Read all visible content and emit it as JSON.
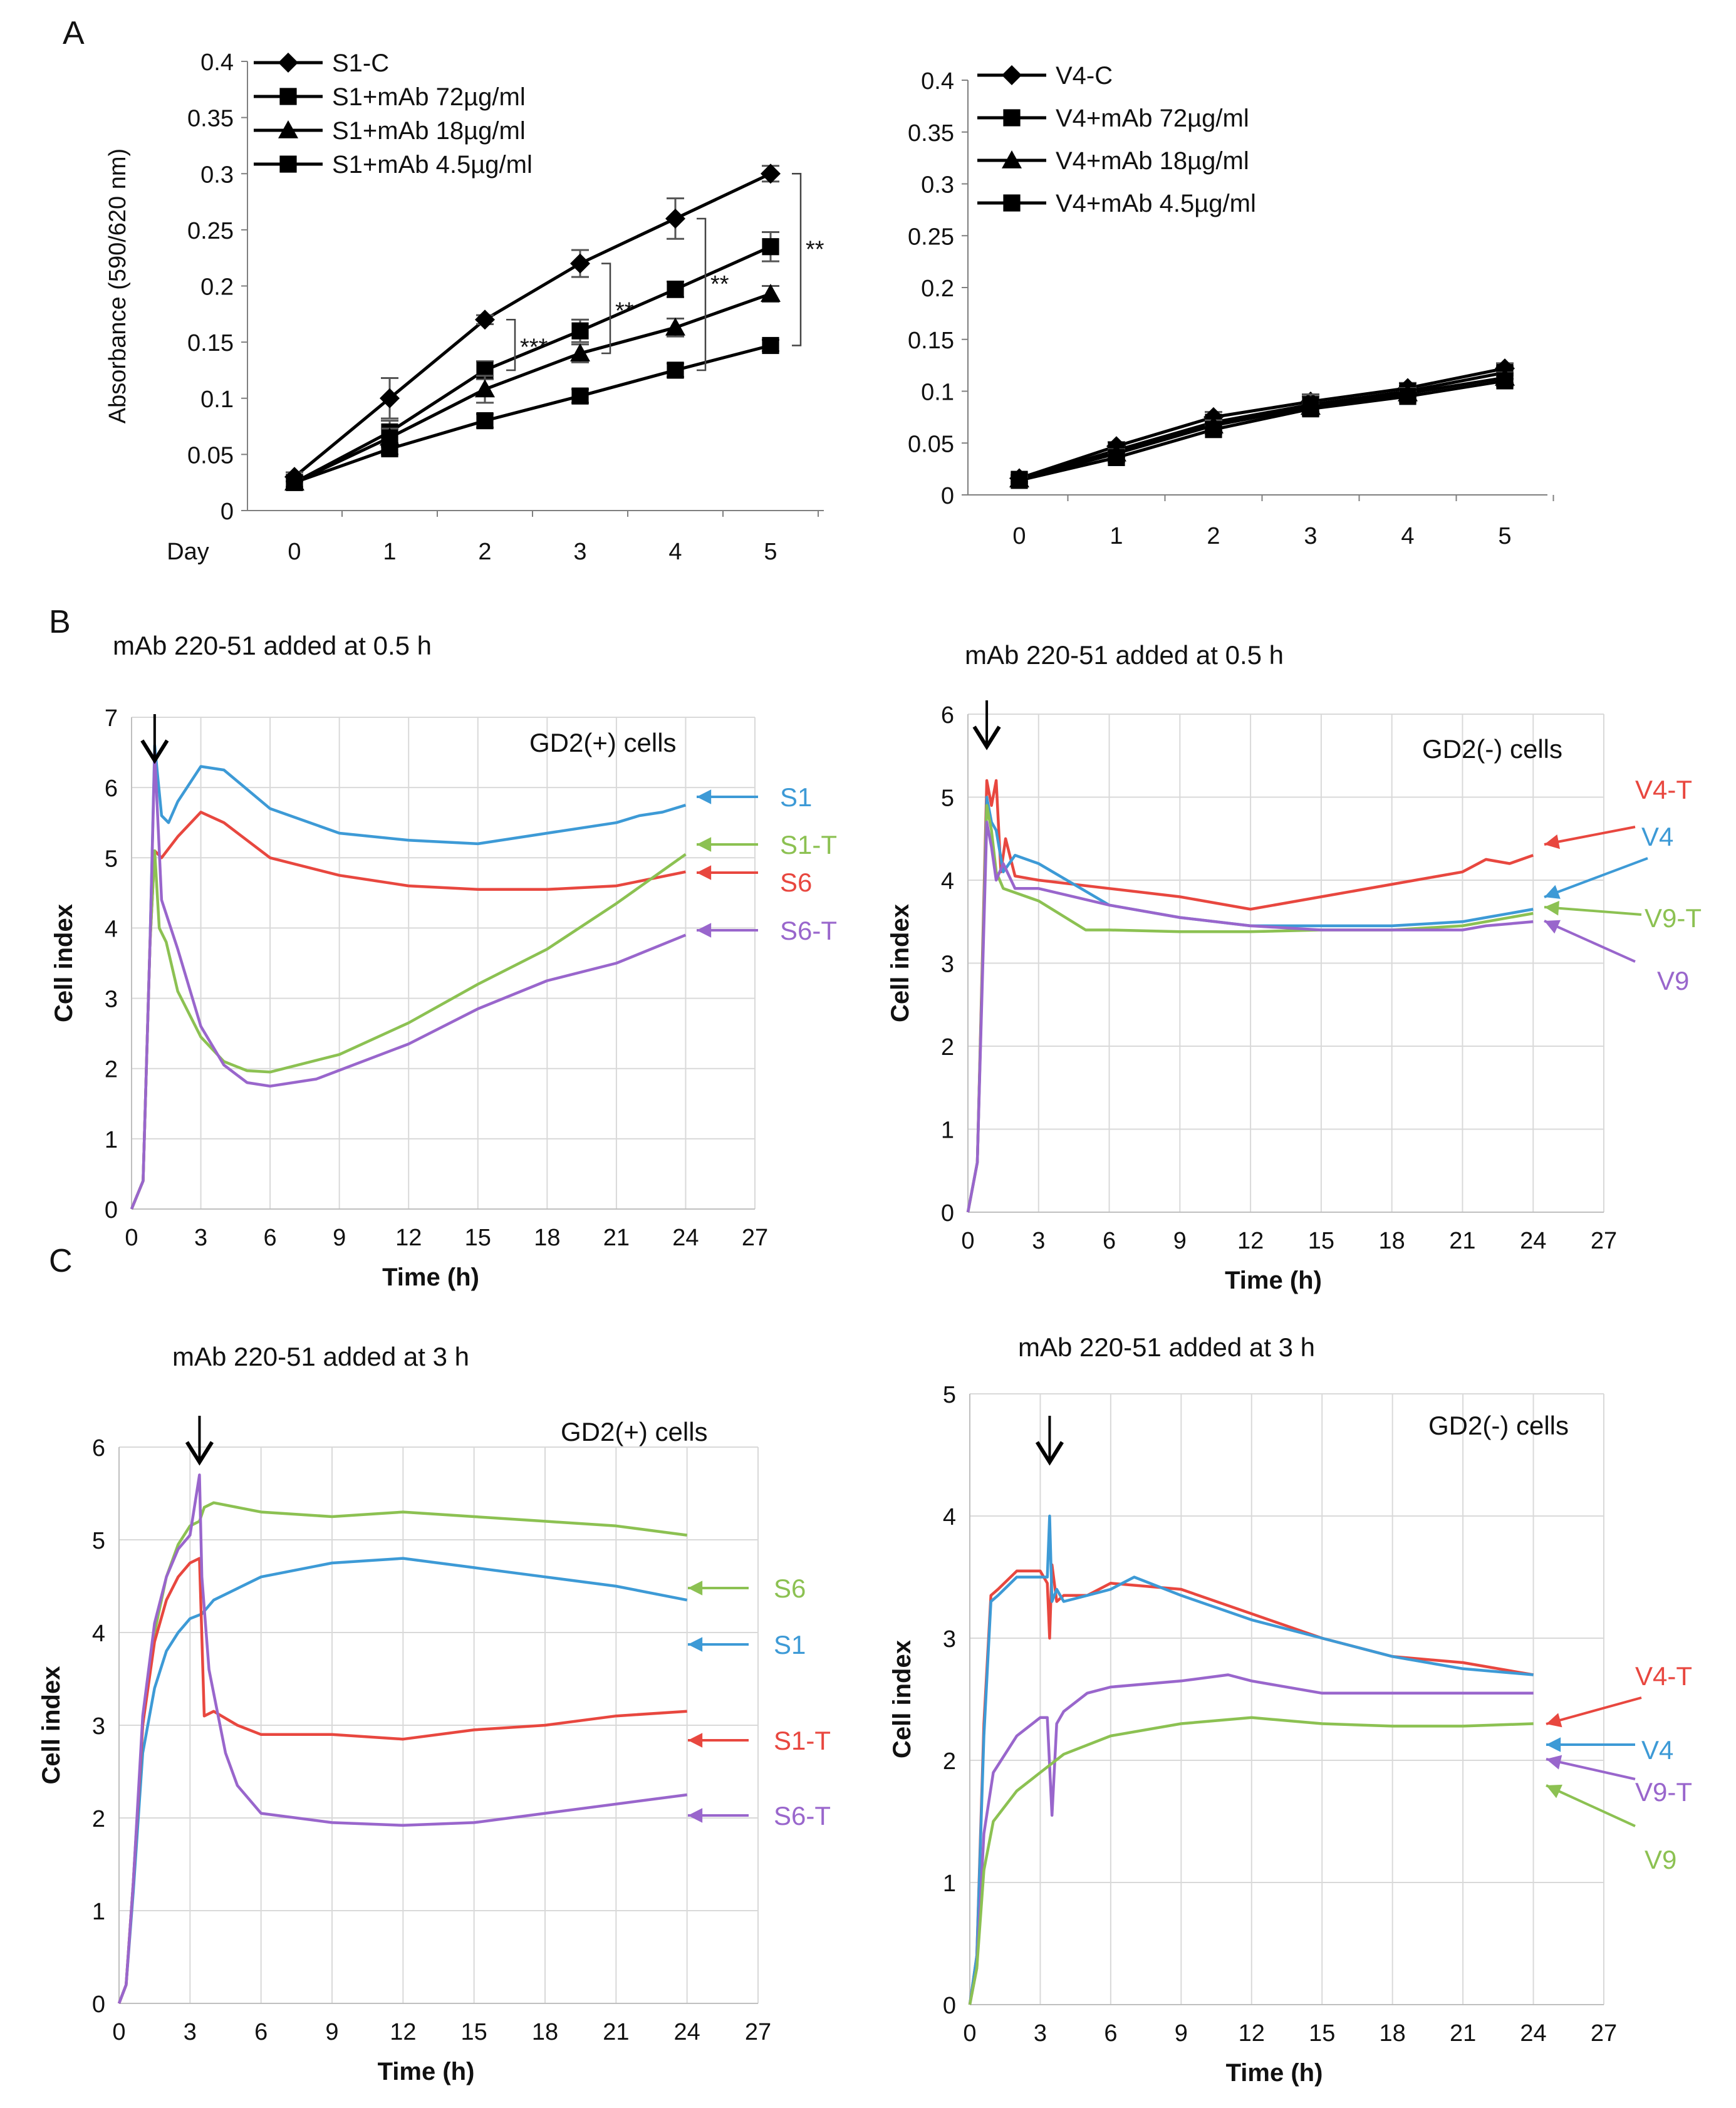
{
  "panel_labels": [
    "A",
    "B",
    "C"
  ],
  "colors": {
    "blue": "#3d9ad6",
    "red": "#e8473f",
    "green": "#8cc152",
    "purple": "#9966cc",
    "black": "#000000",
    "grid": "#d9d9d9"
  },
  "chart_data": [
    {
      "id": "A-left",
      "type": "line",
      "title": "",
      "xlabel": "Day",
      "ylabel": "Absorbance (590/620 nm)",
      "categories": [
        0,
        1,
        2,
        3,
        4,
        5
      ],
      "xticks": [
        "0",
        "1",
        "2",
        "3",
        "4",
        "5"
      ],
      "ylim": [
        0,
        0.4
      ],
      "yticks": [
        "0",
        "0.05",
        "0.1",
        "0.15",
        "0.2",
        "0.25",
        "0.3",
        "0.35",
        "0.4"
      ],
      "grid": false,
      "legend_position": "top-left",
      "series": [
        {
          "name": "S1-C",
          "marker": "diamond",
          "values": [
            0.03,
            0.1,
            0.17,
            0.22,
            0.26,
            0.3
          ],
          "errors": [
            0.004,
            0.018,
            0.004,
            0.012,
            0.018,
            0.007
          ]
        },
        {
          "name": "S1+mAb 72µg/ml",
          "marker": "square",
          "values": [
            0.025,
            0.07,
            0.125,
            0.16,
            0.197,
            0.235
          ],
          "errors": [
            0.004,
            0.01,
            0.008,
            0.01,
            0.007,
            0.013
          ]
        },
        {
          "name": "S1+mAb 18µg/ml",
          "marker": "triangle",
          "values": [
            0.025,
            0.065,
            0.108,
            0.14,
            0.163,
            0.193
          ],
          "errors": [
            0.004,
            0.008,
            0.012,
            0.008,
            0.008,
            0.007
          ]
        },
        {
          "name": "S1+mAb 4.5µg/ml",
          "marker": "square",
          "values": [
            0.025,
            0.055,
            0.08,
            0.102,
            0.125,
            0.147
          ],
          "errors": [
            0.004,
            0.005,
            0.006,
            0.006,
            0.006,
            0.005
          ]
        }
      ],
      "annotations": [
        "***",
        "**",
        "**",
        "**"
      ]
    },
    {
      "id": "A-right",
      "type": "line",
      "title": "",
      "xlabel": "",
      "ylabel": "",
      "categories": [
        0,
        1,
        2,
        3,
        4,
        5
      ],
      "xticks": [
        "0",
        "1",
        "2",
        "3",
        "4",
        "5"
      ],
      "ylim": [
        0,
        0.4
      ],
      "yticks": [
        "0",
        "0.05",
        "0.1",
        "0.15",
        "0.2",
        "0.25",
        "0.3",
        "0.35",
        "0.4"
      ],
      "grid": false,
      "legend_position": "top-left",
      "series": [
        {
          "name": "V4-C",
          "marker": "diamond",
          "values": [
            0.016,
            0.047,
            0.075,
            0.09,
            0.103,
            0.122
          ],
          "errors": [
            0.003,
            0.004,
            0.005,
            0.005,
            0.005,
            0.005
          ]
        },
        {
          "name": "V4+mAb 72µg/ml",
          "marker": "square",
          "values": [
            0.015,
            0.043,
            0.07,
            0.087,
            0.1,
            0.118
          ],
          "errors": [
            0.003,
            0.004,
            0.005,
            0.01,
            0.005,
            0.006
          ]
        },
        {
          "name": "V4+mAb 18µg/ml",
          "marker": "triangle",
          "values": [
            0.015,
            0.04,
            0.067,
            0.085,
            0.098,
            0.113
          ],
          "errors": [
            0.003,
            0.004,
            0.005,
            0.005,
            0.005,
            0.005
          ]
        },
        {
          "name": "V4+mAb 4.5µg/ml",
          "marker": "square",
          "values": [
            0.014,
            0.036,
            0.063,
            0.083,
            0.095,
            0.11
          ],
          "errors": [
            0.003,
            0.004,
            0.004,
            0.005,
            0.005,
            0.005
          ]
        }
      ]
    },
    {
      "id": "B-left",
      "type": "line",
      "title": "mAb 220-51 added at 0.5 h",
      "subtitle": "GD2(+) cells",
      "xlabel": "Time (h)",
      "ylabel": "Cell index",
      "xlim": [
        0,
        27
      ],
      "xticks": [
        "0",
        "3",
        "6",
        "9",
        "12",
        "15",
        "18",
        "21",
        "24",
        "27"
      ],
      "ylim": [
        0,
        7
      ],
      "yticks": [
        "0",
        "1",
        "2",
        "3",
        "4",
        "5",
        "6",
        "7"
      ],
      "grid": true,
      "arrow_at": 1,
      "series": [
        {
          "name": "S1",
          "color": "#3d9ad6",
          "x": [
            0,
            0.5,
            0.8,
            1.0,
            1.3,
            1.6,
            2,
            3,
            4,
            6,
            9,
            12,
            15,
            18,
            21,
            22,
            23,
            24
          ],
          "y": [
            0,
            0.4,
            3.8,
            6.6,
            5.6,
            5.5,
            5.8,
            6.3,
            6.25,
            5.7,
            5.35,
            5.25,
            5.2,
            5.35,
            5.5,
            5.6,
            5.65,
            5.75
          ]
        },
        {
          "name": "S6",
          "color": "#e8473f",
          "x": [
            0,
            0.5,
            0.8,
            1.0,
            1.3,
            2,
            3,
            4,
            6,
            9,
            12,
            15,
            18,
            21,
            24
          ],
          "y": [
            0,
            0.4,
            3.8,
            5.1,
            5.0,
            5.3,
            5.65,
            5.5,
            5.0,
            4.75,
            4.6,
            4.55,
            4.55,
            4.6,
            4.8
          ]
        },
        {
          "name": "S1-T",
          "color": "#8cc152",
          "x": [
            0,
            0.5,
            0.8,
            1.0,
            1.2,
            1.5,
            2,
            3,
            4,
            5,
            6,
            9,
            12,
            15,
            18,
            21,
            24
          ],
          "y": [
            0,
            0.4,
            3.8,
            5.1,
            4.0,
            3.8,
            3.1,
            2.45,
            2.1,
            1.97,
            1.95,
            2.2,
            2.65,
            3.2,
            3.7,
            4.35,
            5.05
          ]
        },
        {
          "name": "S6-T",
          "color": "#9966cc",
          "x": [
            0,
            0.5,
            0.8,
            1.0,
            1.3,
            2,
            3,
            4,
            5,
            6,
            8,
            12,
            15,
            18,
            21,
            24
          ],
          "y": [
            0,
            0.4,
            3.8,
            6.5,
            4.4,
            3.7,
            2.6,
            2.05,
            1.8,
            1.75,
            1.85,
            2.35,
            2.85,
            3.25,
            3.5,
            3.9
          ]
        }
      ],
      "end_labels": [
        "S1",
        "S1-T",
        "S6",
        "S6-T"
      ]
    },
    {
      "id": "B-right",
      "type": "line",
      "title": "mAb 220-51 added at 0.5 h",
      "subtitle": "GD2(-) cells",
      "xlabel": "Time (h)",
      "ylabel": "Cell index",
      "xlim": [
        0,
        27
      ],
      "xticks": [
        "0",
        "3",
        "6",
        "9",
        "12",
        "15",
        "18",
        "21",
        "24",
        "27"
      ],
      "ylim": [
        0,
        6
      ],
      "yticks": [
        "0",
        "1",
        "2",
        "3",
        "4",
        "5",
        "6"
      ],
      "grid": true,
      "arrow_at": 0.8,
      "series": [
        {
          "name": "V4-T",
          "color": "#e8473f",
          "x": [
            0,
            0.4,
            0.8,
            1.0,
            1.2,
            1.4,
            1.6,
            2,
            3,
            6,
            9,
            12,
            15,
            18,
            21,
            22,
            23,
            24
          ],
          "y": [
            0,
            0.6,
            5.2,
            4.9,
            5.2,
            4.1,
            4.5,
            4.05,
            4.0,
            3.9,
            3.8,
            3.65,
            3.8,
            3.95,
            4.1,
            4.25,
            4.2,
            4.3
          ]
        },
        {
          "name": "V4",
          "color": "#3d9ad6",
          "x": [
            0,
            0.4,
            0.8,
            1.0,
            1.2,
            1.5,
            2,
            3,
            6,
            9,
            12,
            15,
            18,
            21,
            22,
            24
          ],
          "y": [
            0,
            0.6,
            5.0,
            4.7,
            4.6,
            4.1,
            4.3,
            4.2,
            3.7,
            3.55,
            3.45,
            3.45,
            3.45,
            3.5,
            3.55,
            3.65
          ]
        },
        {
          "name": "V9-T",
          "color": "#8cc152",
          "x": [
            0,
            0.4,
            0.8,
            1.0,
            1.2,
            1.5,
            2,
            3,
            5,
            6,
            9,
            12,
            15,
            18,
            21,
            24
          ],
          "y": [
            0,
            0.6,
            4.9,
            4.6,
            4.1,
            3.9,
            3.85,
            3.75,
            3.4,
            3.4,
            3.38,
            3.38,
            3.4,
            3.4,
            3.45,
            3.6
          ]
        },
        {
          "name": "V9",
          "color": "#9966cc",
          "x": [
            0,
            0.4,
            0.8,
            1.0,
            1.2,
            1.5,
            2,
            3,
            6,
            9,
            12,
            15,
            18,
            21,
            22,
            24
          ],
          "y": [
            0,
            0.6,
            4.7,
            4.4,
            4.0,
            4.2,
            3.9,
            3.9,
            3.7,
            3.55,
            3.45,
            3.4,
            3.4,
            3.4,
            3.45,
            3.5
          ]
        }
      ],
      "end_labels": [
        "V4-T",
        "V4",
        "V9-T",
        "V9"
      ]
    },
    {
      "id": "C-left",
      "type": "line",
      "title": "mAb 220-51 added at 3 h",
      "subtitle": "GD2(+) cells",
      "xlabel": "Time (h)",
      "ylabel": "Cell index",
      "xlim": [
        0,
        27
      ],
      "xticks": [
        "0",
        "3",
        "6",
        "9",
        "12",
        "15",
        "18",
        "21",
        "24",
        "27"
      ],
      "ylim": [
        0,
        6
      ],
      "yticks": [
        "0",
        "1",
        "2",
        "3",
        "4",
        "5",
        "6"
      ],
      "grid": true,
      "arrow_at": 3.4,
      "series": [
        {
          "name": "S6",
          "color": "#8cc152",
          "x": [
            0,
            0.3,
            0.6,
            1,
            1.5,
            2,
            2.5,
            3,
            3.4,
            3.6,
            4,
            6,
            9,
            12,
            15,
            18,
            21,
            24
          ],
          "y": [
            0,
            0.2,
            1.3,
            3.0,
            4.0,
            4.6,
            4.95,
            5.15,
            5.2,
            5.35,
            5.4,
            5.3,
            5.25,
            5.3,
            5.25,
            5.2,
            5.15,
            5.05
          ]
        },
        {
          "name": "S1",
          "color": "#3d9ad6",
          "x": [
            0,
            0.3,
            0.6,
            1,
            1.5,
            2,
            2.5,
            3,
            3.5,
            4,
            6,
            9,
            12,
            15,
            18,
            21,
            24
          ],
          "y": [
            0,
            0.2,
            1.2,
            2.7,
            3.4,
            3.8,
            4.0,
            4.15,
            4.2,
            4.35,
            4.6,
            4.75,
            4.8,
            4.7,
            4.6,
            4.5,
            4.35
          ]
        },
        {
          "name": "S1-T",
          "color": "#e8473f",
          "x": [
            0,
            0.3,
            0.6,
            1,
            1.5,
            2,
            2.5,
            3,
            3.4,
            3.6,
            4,
            5,
            6,
            9,
            12,
            15,
            18,
            21,
            24
          ],
          "y": [
            0,
            0.2,
            1.3,
            3.0,
            3.9,
            4.35,
            4.6,
            4.75,
            4.8,
            3.1,
            3.15,
            3.0,
            2.9,
            2.9,
            2.85,
            2.95,
            3.0,
            3.1,
            3.15
          ]
        },
        {
          "name": "S6-T",
          "color": "#9966cc",
          "x": [
            0,
            0.3,
            0.6,
            1,
            1.5,
            2,
            2.5,
            3,
            3.4,
            3.5,
            3.8,
            4.5,
            5,
            6,
            9,
            12,
            15,
            18,
            21,
            24
          ],
          "y": [
            0,
            0.2,
            1.3,
            3.1,
            4.1,
            4.6,
            4.9,
            5.05,
            5.7,
            4.6,
            3.6,
            2.7,
            2.35,
            2.05,
            1.95,
            1.92,
            1.95,
            2.05,
            2.15,
            2.25
          ]
        }
      ],
      "end_labels": [
        "S6",
        "S1",
        "S1-T",
        "S6-T"
      ]
    },
    {
      "id": "C-right",
      "type": "line",
      "title": "mAb 220-51 added at 3 h",
      "subtitle": "GD2(-) cells",
      "xlabel": "Time (h)",
      "ylabel": "Cell index",
      "xlim": [
        0,
        27
      ],
      "xticks": [
        "0",
        "3",
        "6",
        "9",
        "12",
        "15",
        "18",
        "21",
        "24",
        "27"
      ],
      "ylim": [
        0,
        5
      ],
      "yticks": [
        "0",
        "1",
        "2",
        "3",
        "4",
        "5"
      ],
      "grid": true,
      "arrow_at": 3.4,
      "series": [
        {
          "name": "V4-T",
          "color": "#e8473f",
          "x": [
            0,
            0.3,
            0.6,
            0.9,
            1.2,
            2,
            3,
            3.3,
            3.4,
            3.5,
            3.7,
            4,
            5,
            6,
            9,
            12,
            15,
            18,
            21,
            24
          ],
          "y": [
            0,
            0.4,
            2.3,
            3.35,
            3.4,
            3.55,
            3.55,
            3.45,
            3.0,
            3.6,
            3.3,
            3.35,
            3.35,
            3.45,
            3.4,
            3.2,
            3.0,
            2.85,
            2.8,
            2.7
          ]
        },
        {
          "name": "V4",
          "color": "#3d9ad6",
          "x": [
            0,
            0.3,
            0.6,
            0.9,
            1.2,
            2,
            3,
            3.3,
            3.4,
            3.5,
            3.7,
            4,
            5,
            6,
            7,
            9,
            12,
            15,
            18,
            21,
            24
          ],
          "y": [
            0,
            0.4,
            2.2,
            3.3,
            3.35,
            3.5,
            3.5,
            3.5,
            4.0,
            3.3,
            3.4,
            3.3,
            3.35,
            3.4,
            3.5,
            3.35,
            3.15,
            3.0,
            2.85,
            2.75,
            2.7
          ]
        },
        {
          "name": "V9-T",
          "color": "#9966cc",
          "x": [
            0,
            0.3,
            0.6,
            1,
            2,
            3,
            3.3,
            3.5,
            3.7,
            4,
            5,
            6,
            9,
            11,
            12,
            15,
            18,
            21,
            24
          ],
          "y": [
            0,
            0.3,
            1.4,
            1.9,
            2.2,
            2.35,
            2.35,
            1.55,
            2.3,
            2.4,
            2.55,
            2.6,
            2.65,
            2.7,
            2.65,
            2.55,
            2.55,
            2.55,
            2.55
          ]
        },
        {
          "name": "V9",
          "color": "#8cc152",
          "x": [
            0,
            0.3,
            0.6,
            1,
            2,
            3,
            4,
            6,
            9,
            12,
            15,
            18,
            21,
            24
          ],
          "y": [
            0,
            0.3,
            1.1,
            1.5,
            1.75,
            1.9,
            2.05,
            2.2,
            2.3,
            2.35,
            2.3,
            2.28,
            2.28,
            2.3
          ]
        }
      ],
      "end_labels": [
        "V4-T",
        "V4",
        "V9-T",
        "V9"
      ]
    }
  ]
}
